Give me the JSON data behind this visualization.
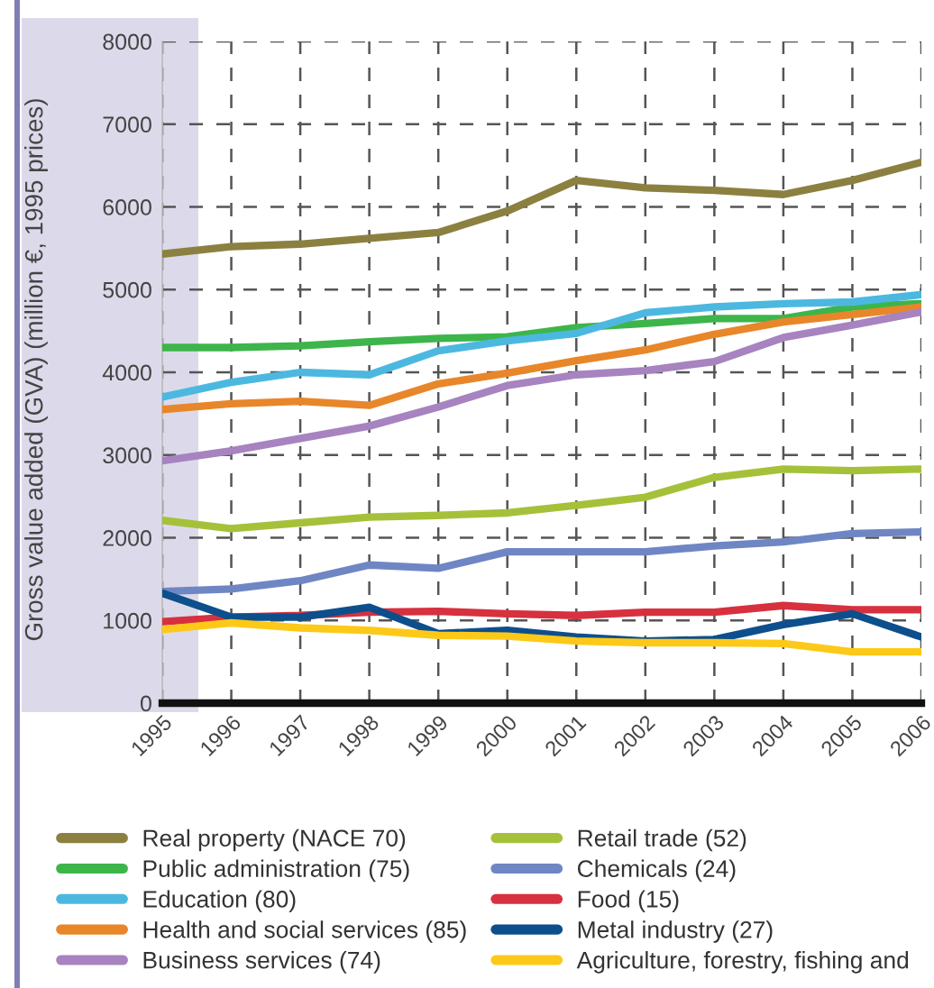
{
  "chart_data": {
    "type": "line",
    "ylabel": "Gross value added (GVA) (million €, 1995 prices)",
    "x": [
      1995,
      1996,
      1997,
      1998,
      1999,
      2000,
      2001,
      2002,
      2003,
      2004,
      2005,
      2006
    ],
    "xlim": [
      1995,
      2006
    ],
    "xticks": [
      1995,
      1996,
      1997,
      1998,
      1999,
      2000,
      2001,
      2002,
      2003,
      2004,
      2005,
      2006
    ],
    "ylim": [
      0,
      8000
    ],
    "yticks": [
      0,
      1000,
      2000,
      3000,
      4000,
      5000,
      6000,
      7000,
      8000
    ],
    "grid": true,
    "legend": "bottom",
    "line_style": "solid",
    "marker": "none",
    "series": [
      {
        "name": "Real property (NACE 70)",
        "color": "#8b8040",
        "values": [
          5430,
          5520,
          5550,
          5620,
          5690,
          5950,
          6320,
          6230,
          6200,
          6150,
          6320,
          6540
        ]
      },
      {
        "name": "Public administration (75)",
        "color": "#3db54a",
        "values": [
          4300,
          4300,
          4320,
          4370,
          4410,
          4430,
          4540,
          4590,
          4650,
          4650,
          4790,
          4830
        ]
      },
      {
        "name": "Education (80)",
        "color": "#4cb8e0",
        "values": [
          3700,
          3880,
          4000,
          3970,
          4260,
          4380,
          4470,
          4720,
          4790,
          4830,
          4850,
          4940
        ]
      },
      {
        "name": "Health and social services (85)",
        "color": "#e8862a",
        "values": [
          3550,
          3620,
          3650,
          3600,
          3860,
          3990,
          4140,
          4270,
          4460,
          4610,
          4700,
          4790
        ]
      },
      {
        "name": "Business services (74)",
        "color": "#a783c0",
        "values": [
          2930,
          3050,
          3200,
          3350,
          3580,
          3840,
          3970,
          4020,
          4130,
          4420,
          4570,
          4730
        ]
      },
      {
        "name": "Retail trade (52)",
        "color": "#a5c13a",
        "values": [
          2210,
          2110,
          2180,
          2250,
          2270,
          2300,
          2390,
          2490,
          2730,
          2830,
          2810,
          2830
        ]
      },
      {
        "name": "Chemicals (24)",
        "color": "#6f86c4",
        "values": [
          1350,
          1380,
          1480,
          1670,
          1630,
          1830,
          1830,
          1830,
          1900,
          1950,
          2050,
          2070
        ]
      },
      {
        "name": "Food (15)",
        "color": "#d7303f",
        "values": [
          985,
          1040,
          1060,
          1100,
          1110,
          1080,
          1060,
          1100,
          1100,
          1180,
          1130,
          1130
        ]
      },
      {
        "name": "Metal industry (27)",
        "color": "#0d4f8c",
        "values": [
          1330,
          1040,
          1040,
          1160,
          840,
          880,
          800,
          750,
          770,
          950,
          1080,
          800
        ]
      },
      {
        "name": "Agriculture, forestry, fishing and",
        "color": "#fdc918",
        "values": [
          890,
          970,
          910,
          880,
          820,
          810,
          750,
          730,
          730,
          720,
          620,
          620
        ]
      }
    ]
  }
}
